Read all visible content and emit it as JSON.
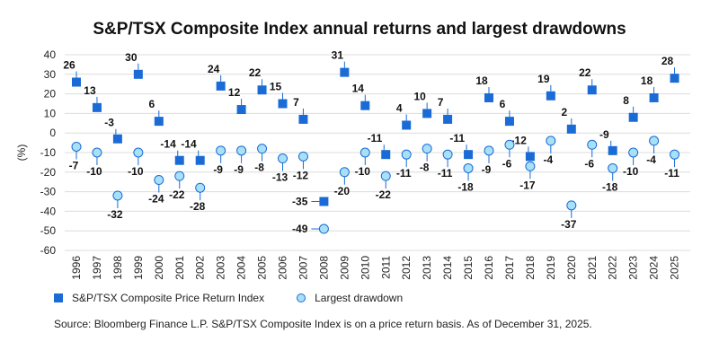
{
  "title": "S&P/TSX Composite Index annual returns and largest drawdowns",
  "source": "Source: Bloomberg Finance L.P. S&P/TSX Composite Index is on a price return basis. As of December 31, 2025.",
  "legend": {
    "return_label": "S&P/TSX Composite Price Return Index",
    "drawdown_label": "Largest drawdown"
  },
  "colors": {
    "return": "#1a6bd6",
    "drawdown_fill": "#a8e0f5",
    "drawdown_stroke": "#1a6bd6",
    "grid": "#dcdcdc"
  },
  "chart_data": {
    "type": "scatter",
    "title": "S&P/TSX Composite Index annual returns and largest drawdowns",
    "ylabel": "(%)",
    "ylim": [
      -60,
      40
    ],
    "yticks": [
      40,
      30,
      20,
      10,
      0,
      -10,
      -20,
      -30,
      -40,
      -50,
      -60
    ],
    "grid": true,
    "legend_position": "bottom-left",
    "categories": [
      "1996",
      "1997",
      "1998",
      "1999",
      "2000",
      "2001",
      "2002",
      "2003",
      "2004",
      "2005",
      "2006",
      "2007",
      "2008",
      "2009",
      "2010",
      "2011",
      "2012",
      "2013",
      "2014",
      "2015",
      "2016",
      "2017",
      "2018",
      "2019",
      "2020",
      "2021",
      "2022",
      "2023",
      "2024",
      "2025"
    ],
    "series": [
      {
        "name": "S&P/TSX Composite Price Return Index",
        "marker": "square",
        "values": [
          26,
          13,
          -3,
          30,
          6,
          -14,
          -14,
          24,
          12,
          22,
          15,
          7,
          -35,
          31,
          14,
          -11,
          4,
          10,
          7,
          -11,
          18,
          6,
          -12,
          19,
          2,
          22,
          -9,
          8,
          18,
          28
        ]
      },
      {
        "name": "Largest drawdown",
        "marker": "circle",
        "values": [
          -7,
          -10,
          -32,
          -10,
          -24,
          -22,
          -28,
          -9,
          -9,
          -8,
          -13,
          -12,
          -49,
          -20,
          -10,
          -22,
          -11,
          -8,
          -11,
          -18,
          -9,
          -6,
          -17,
          -4,
          -37,
          -6,
          -18,
          -10,
          -4,
          -11
        ]
      }
    ]
  }
}
